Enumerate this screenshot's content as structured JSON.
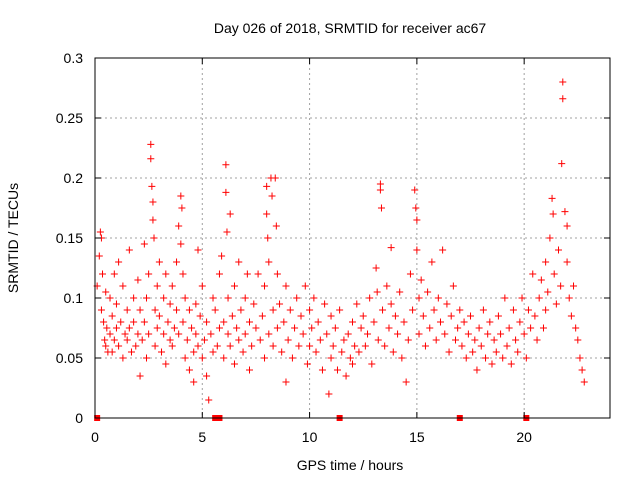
{
  "chart_data": {
    "type": "scatter",
    "title": "Day 026 of 2018, SRMTID for receiver ac67",
    "xlabel": "GPS time / hours",
    "ylabel": "SRMTID / TECUs",
    "xlim": [
      0,
      24
    ],
    "ylim": [
      0,
      0.3
    ],
    "xticks": [
      0,
      5,
      10,
      15,
      20
    ],
    "xtick_labels": [
      "0",
      "5",
      "10",
      "15",
      "20"
    ],
    "yticks": [
      0,
      0.05,
      0.1,
      0.15,
      0.2,
      0.25,
      0.3
    ],
    "ytick_labels": [
      "0",
      "0.05",
      "0.1",
      "0.15",
      "0.2",
      "0.25",
      "0.3"
    ],
    "grid": true,
    "color": "#ff0000",
    "marker": "plus",
    "series": [
      {
        "name": "SRMTID",
        "points": [
          [
            0.1,
            0.11
          ],
          [
            0.2,
            0.135
          ],
          [
            0.25,
            0.155
          ],
          [
            0.3,
            0.15
          ],
          [
            0.3,
            0.09
          ],
          [
            0.35,
            0.12
          ],
          [
            0.4,
            0.08
          ],
          [
            0.45,
            0.065
          ],
          [
            0.5,
            0.105
          ],
          [
            0.5,
            0.06
          ],
          [
            0.55,
            0.075
          ],
          [
            0.6,
            0.055
          ],
          [
            0.7,
            0.1
          ],
          [
            0.7,
            0.07
          ],
          [
            0.8,
            0.085
          ],
          [
            0.8,
            0.055
          ],
          [
            0.9,
            0.12
          ],
          [
            0.9,
            0.065
          ],
          [
            1.0,
            0.095
          ],
          [
            1.0,
            0.075
          ],
          [
            1.1,
            0.13
          ],
          [
            1.1,
            0.06
          ],
          [
            1.2,
            0.08
          ],
          [
            1.3,
            0.11
          ],
          [
            1.3,
            0.05
          ],
          [
            1.4,
            0.07
          ],
          [
            1.5,
            0.09
          ],
          [
            1.5,
            0.065
          ],
          [
            1.6,
            0.14
          ],
          [
            1.6,
            0.075
          ],
          [
            1.7,
            0.055
          ],
          [
            1.8,
            0.1
          ],
          [
            1.8,
            0.08
          ],
          [
            1.9,
            0.06
          ],
          [
            2.0,
            0.115
          ],
          [
            2.0,
            0.07
          ],
          [
            2.1,
            0.09
          ],
          [
            2.1,
            0.035
          ],
          [
            2.2,
            0.065
          ],
          [
            2.3,
            0.145
          ],
          [
            2.3,
            0.08
          ],
          [
            2.4,
            0.1
          ],
          [
            2.4,
            0.05
          ],
          [
            2.5,
            0.12
          ],
          [
            2.5,
            0.07
          ],
          [
            2.6,
            0.228
          ],
          [
            2.6,
            0.216
          ],
          [
            2.65,
            0.193
          ],
          [
            2.7,
            0.18
          ],
          [
            2.7,
            0.165
          ],
          [
            2.75,
            0.15
          ],
          [
            2.8,
            0.09
          ],
          [
            2.8,
            0.06
          ],
          [
            2.9,
            0.11
          ],
          [
            2.9,
            0.075
          ],
          [
            3.0,
            0.13
          ],
          [
            3.0,
            0.085
          ],
          [
            3.1,
            0.055
          ],
          [
            3.2,
            0.1
          ],
          [
            3.2,
            0.07
          ],
          [
            3.3,
            0.12
          ],
          [
            3.3,
            0.045
          ],
          [
            3.4,
            0.08
          ],
          [
            3.5,
            0.095
          ],
          [
            3.5,
            0.065
          ],
          [
            3.6,
            0.11
          ],
          [
            3.6,
            0.06
          ],
          [
            3.7,
            0.075
          ],
          [
            3.8,
            0.13
          ],
          [
            3.8,
            0.09
          ],
          [
            3.9,
            0.16
          ],
          [
            3.9,
            0.07
          ],
          [
            4.0,
            0.185
          ],
          [
            4.0,
            0.145
          ],
          [
            4.05,
            0.175
          ],
          [
            4.1,
            0.12
          ],
          [
            4.1,
            0.08
          ],
          [
            4.2,
            0.1
          ],
          [
            4.2,
            0.05
          ],
          [
            4.3,
            0.065
          ],
          [
            4.4,
            0.09
          ],
          [
            4.4,
            0.04
          ],
          [
            4.5,
            0.075
          ],
          [
            4.6,
            0.055
          ],
          [
            4.6,
            0.03
          ],
          [
            4.7,
            0.095
          ],
          [
            4.7,
            0.07
          ],
          [
            4.8,
            0.14
          ],
          [
            4.8,
            0.06
          ],
          [
            4.9,
            0.085
          ],
          [
            5.0,
            0.05
          ],
          [
            5.0,
            0.11
          ],
          [
            5.1,
            0.065
          ],
          [
            5.2,
            0.08
          ],
          [
            5.2,
            0.035
          ],
          [
            5.3,
            0.015
          ],
          [
            5.4,
            0.07
          ],
          [
            5.5,
            0.1
          ],
          [
            5.5,
            0.055
          ],
          [
            5.6,
            0.09
          ],
          [
            5.7,
            0.06
          ],
          [
            5.8,
            0.12
          ],
          [
            5.8,
            0.075
          ],
          [
            5.9,
            0.135
          ],
          [
            6.0,
            0.08
          ],
          [
            6.0,
            0.05
          ],
          [
            6.1,
            0.211
          ],
          [
            6.1,
            0.188
          ],
          [
            6.15,
            0.155
          ],
          [
            6.2,
            0.1
          ],
          [
            6.2,
            0.07
          ],
          [
            6.3,
            0.17
          ],
          [
            6.3,
            0.06
          ],
          [
            6.4,
            0.085
          ],
          [
            6.5,
            0.11
          ],
          [
            6.5,
            0.045
          ],
          [
            6.6,
            0.075
          ],
          [
            6.7,
            0.13
          ],
          [
            6.7,
            0.065
          ],
          [
            6.8,
            0.09
          ],
          [
            6.9,
            0.055
          ],
          [
            7.0,
            0.1
          ],
          [
            7.0,
            0.07
          ],
          [
            7.1,
            0.12
          ],
          [
            7.2,
            0.08
          ],
          [
            7.2,
            0.04
          ],
          [
            7.3,
            0.06
          ],
          [
            7.4,
            0.095
          ],
          [
            7.5,
            0.075
          ],
          [
            7.6,
            0.12
          ],
          [
            7.7,
            0.065
          ],
          [
            7.8,
            0.085
          ],
          [
            7.9,
            0.11
          ],
          [
            7.9,
            0.05
          ],
          [
            8.0,
            0.193
          ],
          [
            8.0,
            0.17
          ],
          [
            8.05,
            0.15
          ],
          [
            8.1,
            0.13
          ],
          [
            8.1,
            0.07
          ],
          [
            8.2,
            0.2
          ],
          [
            8.25,
            0.185
          ],
          [
            8.3,
            0.09
          ],
          [
            8.3,
            0.06
          ],
          [
            8.4,
            0.2
          ],
          [
            8.45,
            0.16
          ],
          [
            8.5,
            0.12
          ],
          [
            8.5,
            0.075
          ],
          [
            8.6,
            0.095
          ],
          [
            8.7,
            0.055
          ],
          [
            8.8,
            0.08
          ],
          [
            8.9,
            0.11
          ],
          [
            8.9,
            0.03
          ],
          [
            9.0,
            0.065
          ],
          [
            9.1,
            0.09
          ],
          [
            9.2,
            0.05
          ],
          [
            9.3,
            0.075
          ],
          [
            9.4,
            0.1
          ],
          [
            9.5,
            0.06
          ],
          [
            9.6,
            0.085
          ],
          [
            9.7,
            0.07
          ],
          [
            9.8,
            0.11
          ],
          [
            9.9,
            0.045
          ],
          [
            10.0,
            0.09
          ],
          [
            10.0,
            0.06
          ],
          [
            10.1,
            0.075
          ],
          [
            10.2,
            0.1
          ],
          [
            10.3,
            0.055
          ],
          [
            10.4,
            0.08
          ],
          [
            10.5,
            0.065
          ],
          [
            10.6,
            0.04
          ],
          [
            10.7,
            0.095
          ],
          [
            10.8,
            0.07
          ],
          [
            10.9,
            0.02
          ],
          [
            11.0,
            0.085
          ],
          [
            11.0,
            0.05
          ],
          [
            11.1,
            0.06
          ],
          [
            11.2,
            0.075
          ],
          [
            11.3,
            0.04
          ],
          [
            11.4,
            0.09
          ],
          [
            11.5,
            0.055
          ],
          [
            11.6,
            0.065
          ],
          [
            11.7,
            0.035
          ],
          [
            11.8,
            0.07
          ],
          [
            11.9,
            0.05
          ],
          [
            12.0,
            0.08
          ],
          [
            12.0,
            0.045
          ],
          [
            12.1,
            0.06
          ],
          [
            12.2,
            0.095
          ],
          [
            12.3,
            0.055
          ],
          [
            12.4,
            0.075
          ],
          [
            12.5,
            0.085
          ],
          [
            12.6,
            0.06
          ],
          [
            12.7,
            0.07
          ],
          [
            12.8,
            0.1
          ],
          [
            12.9,
            0.045
          ],
          [
            13.0,
            0.08
          ],
          [
            13.1,
            0.125
          ],
          [
            13.15,
            0.105
          ],
          [
            13.2,
            0.065
          ],
          [
            13.3,
            0.195
          ],
          [
            13.3,
            0.19
          ],
          [
            13.35,
            0.175
          ],
          [
            13.4,
            0.09
          ],
          [
            13.5,
            0.06
          ],
          [
            13.6,
            0.11
          ],
          [
            13.7,
            0.075
          ],
          [
            13.8,
            0.142
          ],
          [
            13.8,
            0.095
          ],
          [
            13.9,
            0.055
          ],
          [
            14.0,
            0.085
          ],
          [
            14.1,
            0.07
          ],
          [
            14.2,
            0.105
          ],
          [
            14.3,
            0.05
          ],
          [
            14.4,
            0.08
          ],
          [
            14.5,
            0.03
          ],
          [
            14.6,
            0.065
          ],
          [
            14.7,
            0.12
          ],
          [
            14.8,
            0.09
          ],
          [
            14.9,
            0.19
          ],
          [
            14.95,
            0.175
          ],
          [
            15.0,
            0.165
          ],
          [
            15.0,
            0.14
          ],
          [
            15.1,
            0.1
          ],
          [
            15.1,
            0.07
          ],
          [
            15.2,
            0.115
          ],
          [
            15.3,
            0.085
          ],
          [
            15.4,
            0.06
          ],
          [
            15.5,
            0.105
          ],
          [
            15.6,
            0.075
          ],
          [
            15.7,
            0.13
          ],
          [
            15.8,
            0.09
          ],
          [
            15.9,
            0.065
          ],
          [
            16.0,
            0.1
          ],
          [
            16.1,
            0.08
          ],
          [
            16.2,
            0.14
          ],
          [
            16.3,
            0.07
          ],
          [
            16.4,
            0.095
          ],
          [
            16.5,
            0.055
          ],
          [
            16.6,
            0.085
          ],
          [
            16.7,
            0.11
          ],
          [
            16.8,
            0.065
          ],
          [
            16.9,
            0.075
          ],
          [
            17.0,
            0.09
          ],
          [
            17.1,
            0.06
          ],
          [
            17.2,
            0.08
          ],
          [
            17.3,
            0.05
          ],
          [
            17.4,
            0.07
          ],
          [
            17.5,
            0.085
          ],
          [
            17.6,
            0.055
          ],
          [
            17.7,
            0.065
          ],
          [
            17.8,
            0.04
          ],
          [
            17.9,
            0.075
          ],
          [
            18.0,
            0.06
          ],
          [
            18.1,
            0.09
          ],
          [
            18.2,
            0.05
          ],
          [
            18.3,
            0.07
          ],
          [
            18.4,
            0.08
          ],
          [
            18.5,
            0.045
          ],
          [
            18.6,
            0.065
          ],
          [
            18.7,
            0.055
          ],
          [
            18.8,
            0.085
          ],
          [
            18.9,
            0.07
          ],
          [
            19.0,
            0.05
          ],
          [
            19.1,
            0.1
          ],
          [
            19.2,
            0.06
          ],
          [
            19.3,
            0.075
          ],
          [
            19.4,
            0.045
          ],
          [
            19.5,
            0.09
          ],
          [
            19.6,
            0.065
          ],
          [
            19.7,
            0.055
          ],
          [
            19.8,
            0.08
          ],
          [
            19.9,
            0.1
          ],
          [
            20.0,
            0.07
          ],
          [
            20.1,
            0.05
          ],
          [
            20.2,
            0.09
          ],
          [
            20.3,
            0.075
          ],
          [
            20.4,
            0.12
          ],
          [
            20.5,
            0.085
          ],
          [
            20.6,
            0.065
          ],
          [
            20.7,
            0.1
          ],
          [
            20.8,
            0.115
          ],
          [
            20.9,
            0.075
          ],
          [
            21.0,
            0.13
          ],
          [
            21.0,
            0.09
          ],
          [
            21.1,
            0.105
          ],
          [
            21.2,
            0.15
          ],
          [
            21.3,
            0.183
          ],
          [
            21.35,
            0.17
          ],
          [
            21.4,
            0.12
          ],
          [
            21.5,
            0.095
          ],
          [
            21.6,
            0.14
          ],
          [
            21.7,
            0.11
          ],
          [
            21.75,
            0.212
          ],
          [
            21.8,
            0.28
          ],
          [
            21.8,
            0.266
          ],
          [
            21.9,
            0.172
          ],
          [
            22.0,
            0.16
          ],
          [
            22.0,
            0.13
          ],
          [
            22.1,
            0.1
          ],
          [
            22.2,
            0.085
          ],
          [
            22.3,
            0.11
          ],
          [
            22.4,
            0.075
          ],
          [
            22.5,
            0.065
          ],
          [
            22.6,
            0.05
          ],
          [
            22.7,
            0.04
          ],
          [
            22.8,
            0.03
          ]
        ]
      }
    ],
    "baseline_markers_x": [
      0.1,
      5.6,
      5.8,
      11.4,
      17.0,
      20.1
    ]
  }
}
